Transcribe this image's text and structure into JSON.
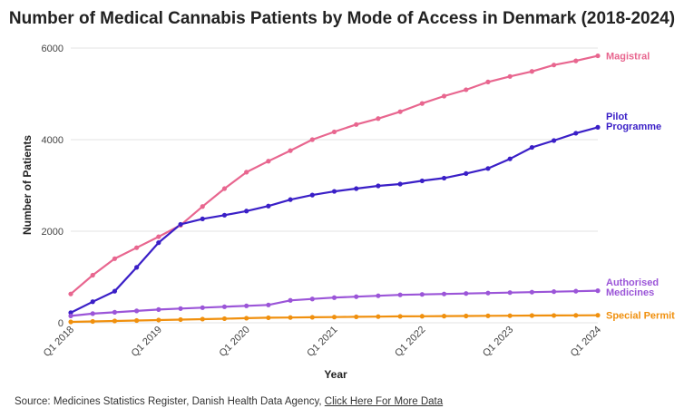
{
  "title": "Number of Medical Cannabis Patients by Mode of Access in Denmark (2018-2024)",
  "source": {
    "prefix": "Source: Medicines Statistics Register, Danish Health Data Agency, ",
    "link_text": "Click Here For More Data"
  },
  "chart_data": {
    "type": "line",
    "title": "Number of Medical Cannabis Patients by Mode of Access in Denmark (2018-2024)",
    "xlabel": "Year",
    "ylabel": "Number of Patients",
    "ylim": [
      0,
      6000
    ],
    "yticks": [
      0,
      2000,
      4000,
      6000
    ],
    "xtick_labels": [
      "Q1 2018",
      "Q1 2019",
      "Q1 2020",
      "Q1 2021",
      "Q1 2022",
      "Q1 2023",
      "Q1 2024"
    ],
    "grid": "horizontal",
    "legend": "end-of-line labels",
    "x": [
      "Q1 2018",
      "Q2 2018",
      "Q3 2018",
      "Q4 2018",
      "Q1 2019",
      "Q2 2019",
      "Q3 2019",
      "Q4 2019",
      "Q1 2020",
      "Q2 2020",
      "Q3 2020",
      "Q4 2020",
      "Q1 2021",
      "Q2 2021",
      "Q3 2021",
      "Q4 2021",
      "Q1 2022",
      "Q2 2022",
      "Q3 2022",
      "Q4 2022",
      "Q1 2023",
      "Q2 2023",
      "Q3 2023",
      "Q4 2023",
      "Q1 2024"
    ],
    "series": [
      {
        "name": "Magistral",
        "label_lines": [
          "Magistral"
        ],
        "color": "#e8668f",
        "values": [
          630,
          1040,
          1400,
          1640,
          1880,
          2130,
          2540,
          2930,
          3290,
          3530,
          3760,
          4000,
          4170,
          4330,
          4460,
          4610,
          4790,
          4950,
          5090,
          5260,
          5380,
          5490,
          5630,
          5720,
          5830
        ]
      },
      {
        "name": "Pilot Programme",
        "label_lines": [
          "Pilot",
          "Programme"
        ],
        "color": "#3a1fc7",
        "values": [
          220,
          460,
          690,
          1210,
          1750,
          2150,
          2270,
          2350,
          2440,
          2550,
          2690,
          2790,
          2870,
          2930,
          2990,
          3030,
          3100,
          3160,
          3260,
          3370,
          3580,
          3830,
          3980,
          4140,
          4270
        ]
      },
      {
        "name": "Authorised Medicines",
        "label_lines": [
          "Authorised",
          "Medicines"
        ],
        "color": "#9b55d8",
        "values": [
          150,
          200,
          230,
          260,
          290,
          310,
          330,
          350,
          370,
          390,
          490,
          520,
          550,
          570,
          590,
          610,
          620,
          630,
          640,
          650,
          660,
          670,
          680,
          690,
          700
        ]
      },
      {
        "name": "Special Permit",
        "label_lines": [
          "Special Permit"
        ],
        "color": "#f0900e",
        "values": [
          20,
          30,
          40,
          50,
          60,
          70,
          80,
          90,
          100,
          110,
          115,
          120,
          125,
          130,
          135,
          140,
          143,
          146,
          149,
          152,
          155,
          158,
          160,
          162,
          165
        ]
      }
    ]
  }
}
